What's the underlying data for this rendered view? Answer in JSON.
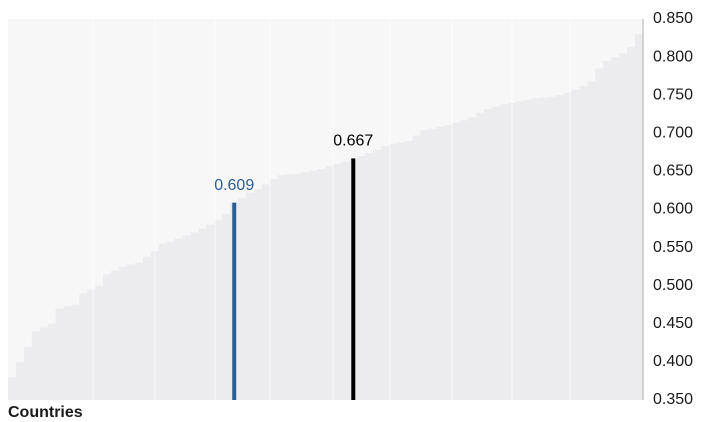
{
  "chart_data": {
    "type": "bar",
    "x_label": "Countries",
    "values": [
      0.38,
      0.4,
      0.42,
      0.44,
      0.445,
      0.45,
      0.47,
      0.473,
      0.475,
      0.49,
      0.495,
      0.5,
      0.515,
      0.52,
      0.525,
      0.528,
      0.53,
      0.538,
      0.545,
      0.555,
      0.558,
      0.562,
      0.566,
      0.57,
      0.575,
      0.58,
      0.586,
      0.594,
      0.609,
      0.615,
      0.622,
      0.627,
      0.633,
      0.64,
      0.645,
      0.646,
      0.647,
      0.649,
      0.651,
      0.653,
      0.657,
      0.66,
      0.663,
      0.667,
      0.67,
      0.674,
      0.678,
      0.683,
      0.686,
      0.688,
      0.69,
      0.697,
      0.704,
      0.706,
      0.709,
      0.711,
      0.714,
      0.717,
      0.721,
      0.727,
      0.732,
      0.735,
      0.738,
      0.74,
      0.742,
      0.744,
      0.746,
      0.747,
      0.748,
      0.75,
      0.753,
      0.757,
      0.762,
      0.768,
      0.785,
      0.795,
      0.8,
      0.805,
      0.813,
      0.83
    ],
    "color": "#ececee",
    "background": "#f7f7f7",
    "highlights": [
      {
        "index": 28,
        "color": "#2b5f94"
      },
      {
        "index": 43,
        "color": "#000000"
      }
    ],
    "ylim": [
      0.35,
      0.85
    ],
    "yticks": [
      {
        "value": 0.35,
        "label": "0.350"
      },
      {
        "value": 0.4,
        "label": "0.400"
      },
      {
        "value": 0.45,
        "label": "0.450"
      },
      {
        "value": 0.5,
        "label": "0.500"
      },
      {
        "value": 0.55,
        "label": "0.550"
      },
      {
        "value": 0.6,
        "label": "0.600"
      },
      {
        "value": 0.65,
        "label": "0.650"
      },
      {
        "value": 0.7,
        "label": "0.700"
      },
      {
        "value": 0.75,
        "label": "0.750"
      },
      {
        "value": 0.8,
        "label": "0.800"
      },
      {
        "value": 0.85,
        "label": "0.850"
      }
    ],
    "y_axis_side": "right",
    "grid": false
  }
}
